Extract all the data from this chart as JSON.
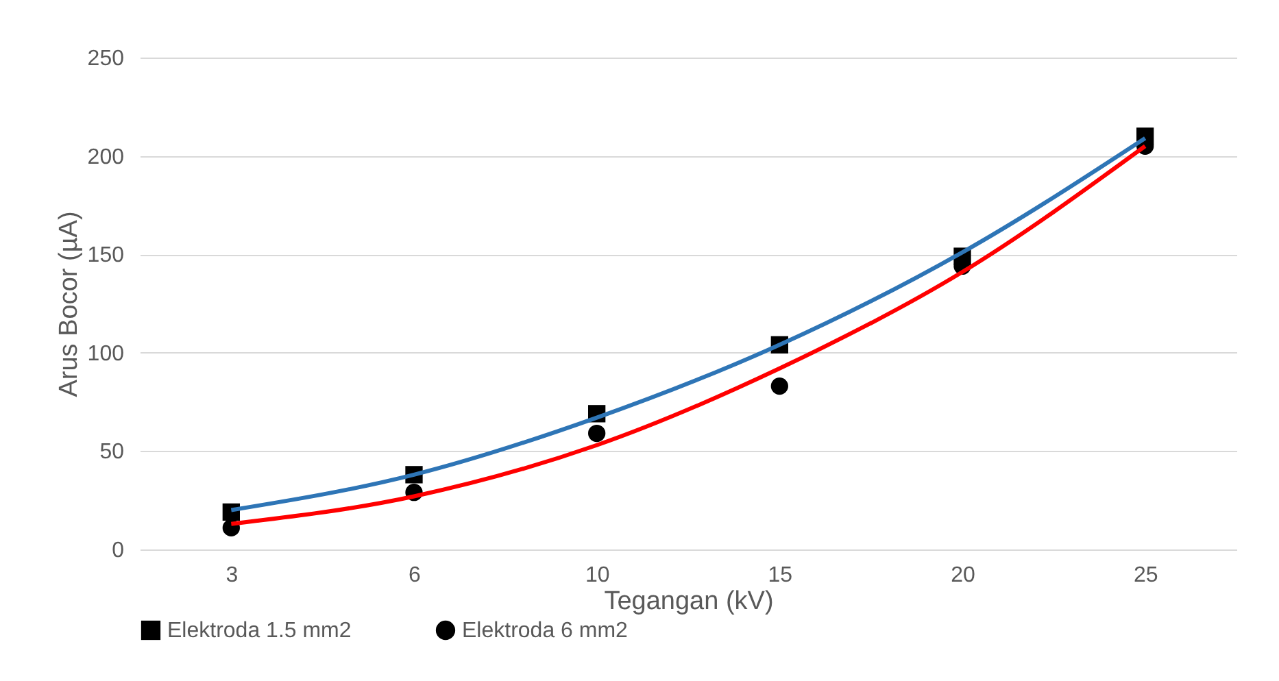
{
  "chart_data": {
    "type": "scatter",
    "xlabel": "Tegangan (kV)",
    "ylabel": "Arus Bocor (µA)",
    "categories": [
      "3",
      "6",
      "10",
      "15",
      "20",
      "25"
    ],
    "ylim": [
      0,
      250
    ],
    "yticks": [
      0,
      50,
      100,
      150,
      200,
      250
    ],
    "grid": "y",
    "legend": "bottom",
    "series": [
      {
        "name": "Elektroda 1.5 mm2",
        "marker": "square",
        "color": "#000000",
        "values": [
          19,
          38,
          69,
          104,
          149,
          210
        ]
      },
      {
        "name": "Elektroda 6 mm2",
        "marker": "circle",
        "color": "#000000",
        "values": [
          11,
          29,
          59,
          83,
          144,
          205
        ]
      },
      {
        "type": "line",
        "color": "#2e75b6",
        "values": [
          20,
          38,
          67,
          104,
          151,
          209
        ]
      },
      {
        "type": "line",
        "color": "#ff0000",
        "values": [
          13,
          27,
          53,
          92,
          141,
          205
        ]
      }
    ]
  }
}
